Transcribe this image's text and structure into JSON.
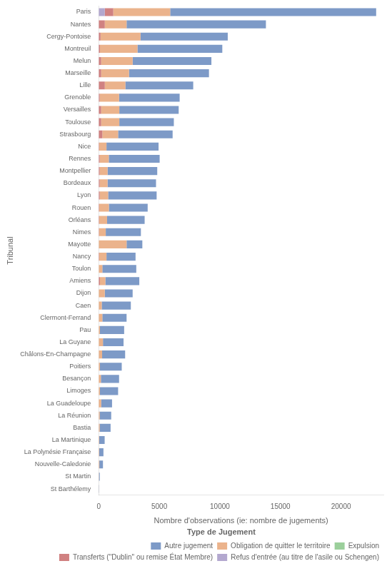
{
  "chart_data": {
    "type": "bar",
    "orientation": "horizontal",
    "stacked": true,
    "xlabel": "Nombre d'observations (ie: nombre de jugements)",
    "ylabel": "Tribunal",
    "categories": [
      "Paris",
      "Nantes",
      "Cergy-Pontoise",
      "Montreuil",
      "Melun",
      "Marseille",
      "Lille",
      "Grenoble",
      "Versailles",
      "Toulouse",
      "Strasbourg",
      "Nice",
      "Rennes",
      "Montpellier",
      "Bordeaux",
      "Lyon",
      "Rouen",
      "Orléans",
      "Nimes",
      "Mayotte",
      "Nancy",
      "Toulon",
      "Amiens",
      "Dijon",
      "Caen",
      "Clermont-Ferrand",
      "Pau",
      "La Guyane",
      "Châlons-En-Champagne",
      "Poitiers",
      "Besançon",
      "Limoges",
      "La Guadeloupe",
      "La Réunion",
      "Bastia",
      "La Martinique",
      "La Polynésie Française",
      "Nouvelle-Caledonie",
      "St Martin",
      "St Barthélemy"
    ],
    "series": [
      {
        "name": "Refus d'entrée (au titre de l'asile ou Schengen)",
        "color": "#a89cc8",
        "values": [
          500,
          0,
          0,
          0,
          0,
          0,
          0,
          0,
          0,
          0,
          0,
          0,
          0,
          0,
          0,
          0,
          0,
          0,
          0,
          0,
          0,
          0,
          0,
          0,
          0,
          0,
          0,
          0,
          0,
          0,
          0,
          0,
          0,
          0,
          0,
          0,
          0,
          0,
          0,
          0
        ]
      },
      {
        "name": "Transferts (\"Dublin\" ou remise État Membre)",
        "color": "#c97070",
        "values": [
          700,
          500,
          150,
          100,
          200,
          200,
          500,
          80,
          200,
          200,
          300,
          40,
          80,
          80,
          80,
          80,
          40,
          40,
          30,
          0,
          40,
          0,
          100,
          0,
          0,
          0,
          0,
          0,
          0,
          0,
          0,
          0,
          0,
          0,
          0,
          0,
          0,
          0,
          0,
          0
        ]
      },
      {
        "name": "Expulsion",
        "color": "#8dc88d",
        "values": [
          0,
          0,
          0,
          0,
          0,
          0,
          0,
          0,
          0,
          0,
          0,
          0,
          0,
          0,
          0,
          0,
          0,
          0,
          0,
          0,
          0,
          0,
          0,
          0,
          0,
          0,
          0,
          0,
          0,
          0,
          0,
          0,
          0,
          0,
          0,
          0,
          0,
          0,
          0,
          0
        ]
      },
      {
        "name": "Obligation de quitter le territoire",
        "color": "#e8a87c",
        "values": [
          4700,
          1800,
          3300,
          3100,
          2600,
          2300,
          1700,
          1600,
          1500,
          1500,
          1300,
          600,
          750,
          650,
          650,
          700,
          800,
          650,
          550,
          2300,
          600,
          300,
          450,
          500,
          250,
          300,
          100,
          350,
          280,
          100,
          180,
          100,
          200,
          80,
          80,
          40,
          40,
          50,
          15,
          8
        ]
      },
      {
        "name": "Autre jugement",
        "color": "#6b8cbf",
        "values": [
          17000,
          11500,
          7200,
          7000,
          6500,
          6600,
          5600,
          5000,
          4900,
          4500,
          4500,
          4300,
          4200,
          4100,
          4000,
          4000,
          3200,
          3100,
          2900,
          1300,
          2400,
          2800,
          2800,
          2300,
          2400,
          2000,
          2000,
          1700,
          1900,
          1800,
          1500,
          1500,
          900,
          950,
          900,
          450,
          350,
          300,
          70,
          20
        ]
      }
    ],
    "legend_title": "Type de Jugement",
    "legend": "lower right",
    "xlim": [
      0,
      23500
    ],
    "xticks": [
      0,
      5000,
      10000,
      15000,
      20000
    ],
    "grid": false
  }
}
